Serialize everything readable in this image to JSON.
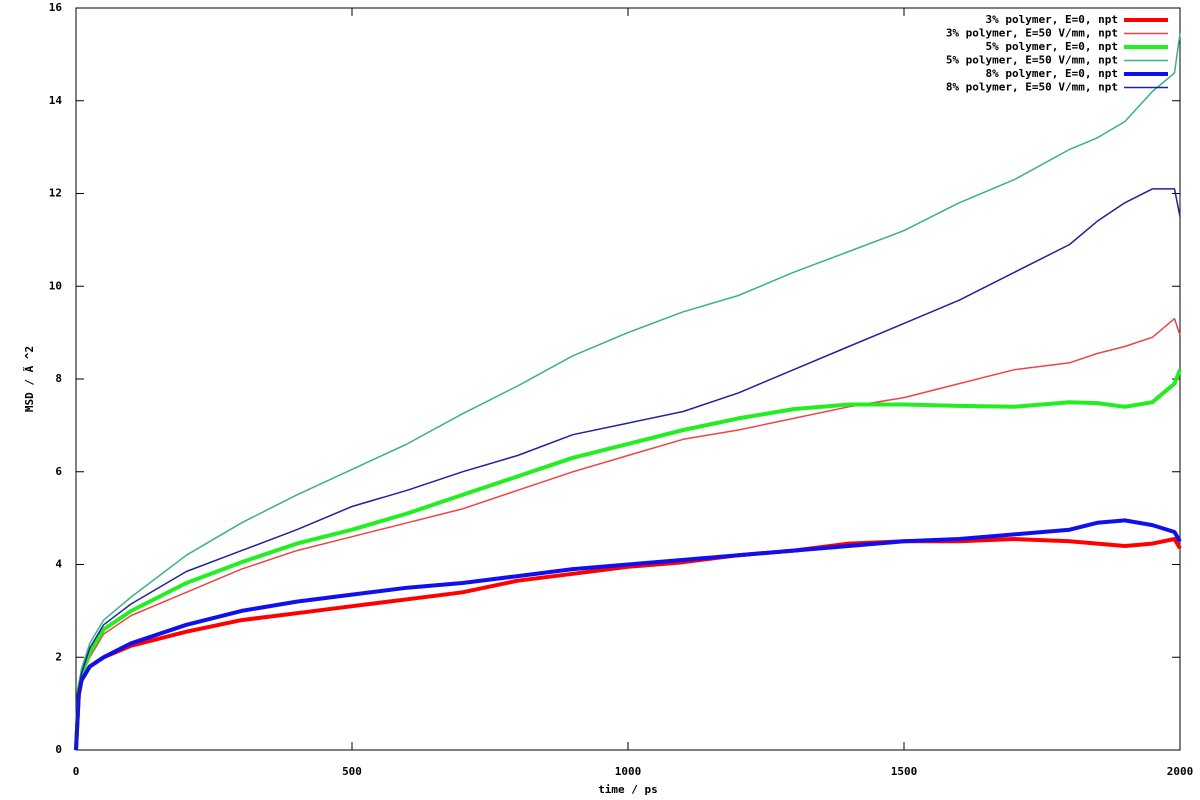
{
  "chart_data": {
    "type": "line",
    "xlabel": "time / ps",
    "ylabel": "MSD / Ã ^2",
    "xlim": [
      0,
      2000
    ],
    "xticks": [
      0,
      500,
      1000,
      1500,
      2000
    ],
    "ylim": [
      0,
      16
    ],
    "yticks": [
      0,
      2,
      4,
      6,
      8,
      10,
      12,
      14,
      16
    ],
    "grid": false,
    "legend": "top-right",
    "x": [
      0,
      5,
      10,
      25,
      50,
      100,
      200,
      300,
      400,
      500,
      600,
      700,
      800,
      900,
      1000,
      1100,
      1200,
      1300,
      1400,
      1500,
      1600,
      1700,
      1800,
      1850,
      1900,
      1950,
      1990,
      2000
    ],
    "series": [
      {
        "name": "3% polymer, E=0, npt",
        "color": "#ff0000",
        "line_width": 4,
        "values": [
          0,
          1.2,
          1.5,
          1.8,
          2.0,
          2.25,
          2.55,
          2.8,
          2.95,
          3.1,
          3.25,
          3.4,
          3.65,
          3.8,
          3.95,
          4.05,
          4.2,
          4.3,
          4.45,
          4.5,
          4.5,
          4.55,
          4.5,
          4.45,
          4.4,
          4.45,
          4.55,
          4.35
        ]
      },
      {
        "name": "3% polymer, E=50 V/mm, npt",
        "color": "#ee4444",
        "line_width": 1.5,
        "values": [
          0,
          1.3,
          1.6,
          2.0,
          2.5,
          2.9,
          3.4,
          3.9,
          4.3,
          4.6,
          4.9,
          5.2,
          5.6,
          6.0,
          6.35,
          6.7,
          6.9,
          7.15,
          7.4,
          7.6,
          7.9,
          8.2,
          8.35,
          8.55,
          8.7,
          8.9,
          9.3,
          8.95
        ]
      },
      {
        "name": "5% polymer, E=0, npt",
        "color": "#22ee22",
        "line_width": 4,
        "values": [
          0,
          1.3,
          1.6,
          2.1,
          2.6,
          3.0,
          3.6,
          4.05,
          4.45,
          4.75,
          5.1,
          5.5,
          5.9,
          6.3,
          6.6,
          6.9,
          7.15,
          7.35,
          7.45,
          7.45,
          7.42,
          7.4,
          7.5,
          7.48,
          7.4,
          7.5,
          7.9,
          8.2
        ]
      },
      {
        "name": "5% polymer, E=50 V/mm, npt",
        "color": "#3cb08a",
        "line_width": 1.5,
        "values": [
          0,
          1.4,
          1.75,
          2.3,
          2.8,
          3.3,
          4.2,
          4.9,
          5.5,
          6.05,
          6.6,
          7.25,
          7.85,
          8.5,
          9.0,
          9.45,
          9.8,
          10.3,
          10.75,
          11.2,
          11.8,
          12.3,
          12.95,
          13.2,
          13.55,
          14.2,
          14.6,
          15.45
        ]
      },
      {
        "name": "8% polymer, E=0, npt",
        "color": "#1010ee",
        "line_width": 4,
        "values": [
          0,
          1.2,
          1.5,
          1.8,
          2.0,
          2.3,
          2.7,
          3.0,
          3.2,
          3.35,
          3.5,
          3.6,
          3.75,
          3.9,
          4.0,
          4.1,
          4.2,
          4.3,
          4.4,
          4.5,
          4.55,
          4.65,
          4.75,
          4.9,
          4.95,
          4.85,
          4.7,
          4.5
        ]
      },
      {
        "name": "8% polymer, E=50 V/mm, npt",
        "color": "#22229a",
        "line_width": 1.5,
        "values": [
          0,
          1.3,
          1.65,
          2.2,
          2.7,
          3.15,
          3.85,
          4.3,
          4.75,
          5.25,
          5.6,
          6.0,
          6.35,
          6.8,
          7.05,
          7.3,
          7.7,
          8.2,
          8.7,
          9.2,
          9.7,
          10.3,
          10.9,
          11.4,
          11.8,
          12.1,
          12.1,
          11.5
        ]
      }
    ]
  }
}
